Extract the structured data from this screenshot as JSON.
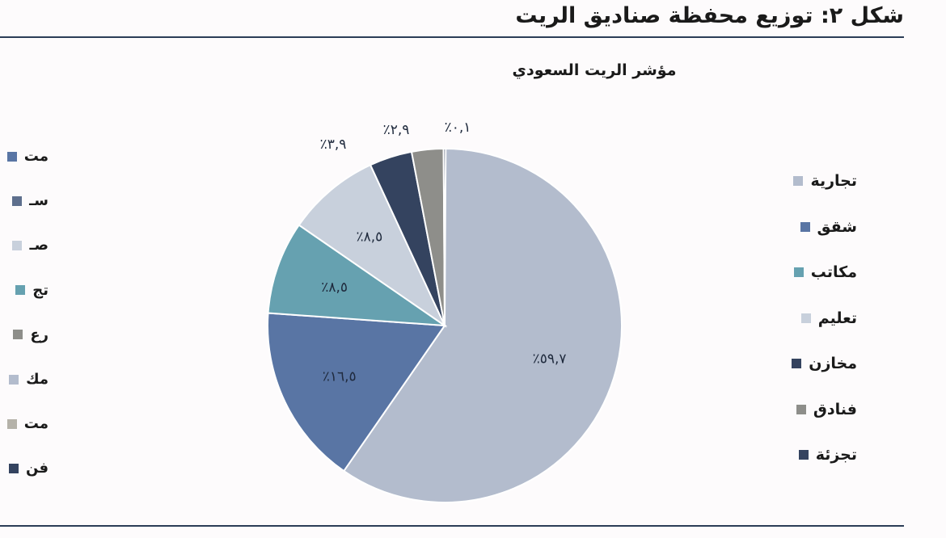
{
  "figure_title": "شكل ٢: توزيع محفظة صناديق الريت",
  "chart_data": {
    "type": "pie",
    "title": "مؤشر الريت السعودي",
    "slices": [
      {
        "name": "تجارية",
        "value": 59.7,
        "label": "٪٥٩,٧",
        "color": "#b3bccd"
      },
      {
        "name": "شقق",
        "value": 16.5,
        "label": "٪١٦,٥",
        "color": "#5975a4"
      },
      {
        "name": "مكاتب",
        "value": 8.5,
        "label": "٪٨,٥",
        "color": "#66a1b0"
      },
      {
        "name": "تعليم",
        "value": 8.5,
        "label": "٪٨,٥",
        "color": "#c8d0dc"
      },
      {
        "name": "مخازن",
        "value": 3.9,
        "label": "٪٣,٩",
        "color": "#34435f"
      },
      {
        "name": "فنادق",
        "value": 2.9,
        "label": "٪٢,٩",
        "color": "#8e8e8a"
      },
      {
        "name": "تجزئة",
        "value": 0.1,
        "label": "٪٠,١",
        "color": "#34435f"
      }
    ],
    "legend_position": "right"
  },
  "left_legend": [
    {
      "label": "مت",
      "color": "#5975a4"
    },
    {
      "label": "سـ",
      "color": "#5e6f8d"
    },
    {
      "label": "صـ",
      "color": "#c8d0dc"
    },
    {
      "label": "تج",
      "color": "#66a1b0"
    },
    {
      "label": "رع",
      "color": "#8e8e8a"
    },
    {
      "label": "مك",
      "color": "#b3bccd"
    },
    {
      "label": "مت",
      "color": "#b5b2a9"
    },
    {
      "label": "فن",
      "color": "#34435f"
    }
  ]
}
